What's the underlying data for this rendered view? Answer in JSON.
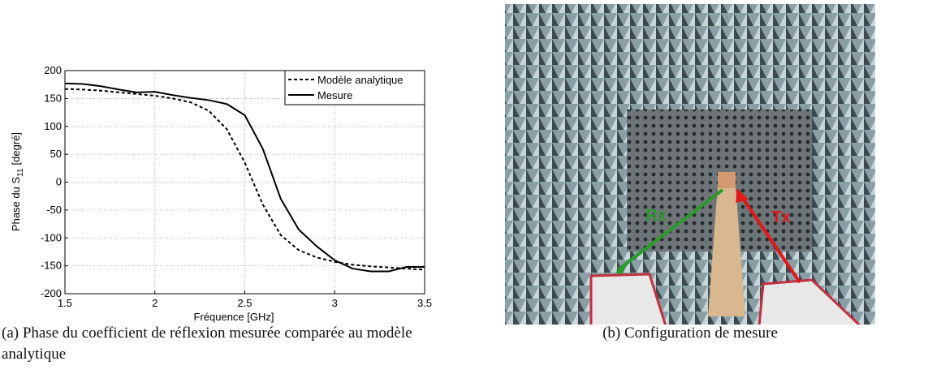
{
  "chart_data": {
    "type": "line",
    "ylabel": {
      "text": "Phase du S",
      "sub": "11",
      "unit": "[degré]"
    },
    "xlabel": "Fréquence [GHz]",
    "x": [
      1.5,
      1.6,
      1.7,
      1.8,
      1.9,
      2.0,
      2.1,
      2.2,
      2.3,
      2.4,
      2.5,
      2.6,
      2.7,
      2.8,
      2.9,
      3.0,
      3.1,
      3.2,
      3.3,
      3.4,
      3.5
    ],
    "series": [
      {
        "name": "Modèle analytique",
        "color": "#000000",
        "dashed": true,
        "values": [
          167,
          166,
          164,
          161,
          158,
          155,
          150,
          143,
          128,
          95,
          35,
          -40,
          -95,
          -122,
          -135,
          -143,
          -148,
          -151,
          -153,
          -155,
          -157
        ]
      },
      {
        "name": "Mesure",
        "color": "#000000",
        "dashed": false,
        "values": [
          177,
          176,
          172,
          166,
          161,
          162,
          156,
          151,
          147,
          140,
          120,
          60,
          -30,
          -85,
          -115,
          -140,
          -155,
          -160,
          -160,
          -152,
          -152
        ]
      }
    ],
    "xlim": [
      1.5,
      3.5
    ],
    "xticks": [
      1.5,
      2,
      2.5,
      3,
      3.5
    ],
    "ylim": [
      -200,
      200
    ],
    "yticks": [
      -200,
      -150,
      -100,
      -50,
      0,
      50,
      100,
      150,
      200
    ],
    "grid": true,
    "legend": "northeast"
  },
  "figure": {
    "caption_a": "(a) Phase du coefficient de réflexion mesurée comparée au modèle analytique",
    "caption_b": "(b) Configuration de mesure",
    "photo_labels": [
      "Rx",
      "Tx"
    ]
  }
}
